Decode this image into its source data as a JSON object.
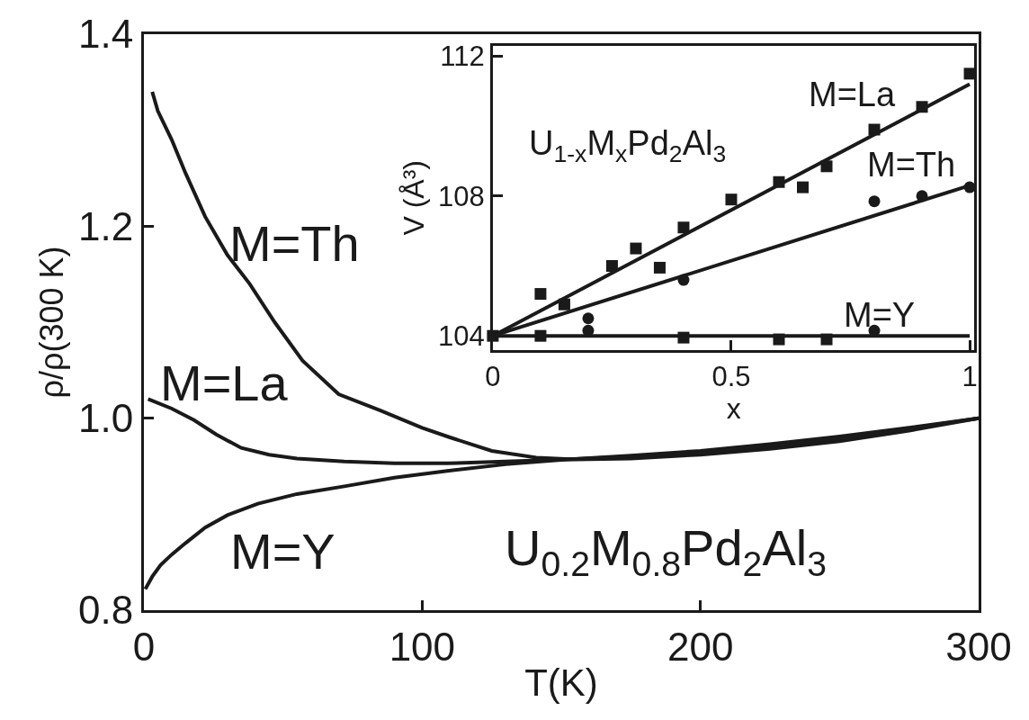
{
  "chart_data": [
    {
      "type": "line",
      "xlabel": "T(K)",
      "ylabel": "ρ/ρ(300 K)",
      "xlim": [
        0,
        300
      ],
      "ylim": [
        0.8,
        1.4
      ],
      "xticks": [
        0,
        100,
        200,
        300
      ],
      "yticks": [
        0.8,
        {
          "value": 1.0,
          "label": "1.0"
        },
        1.2,
        1.4
      ],
      "series": [
        {
          "color": "#1a1a1a",
          "x": [
            3,
            5,
            10,
            15,
            22,
            30,
            38,
            47,
            57,
            70,
            85,
            100,
            110,
            125,
            141,
            155,
            175,
            200,
            225,
            250,
            275,
            300
          ],
          "values": [
            1.34,
            1.32,
            1.29,
            1.255,
            1.21,
            1.17,
            1.14,
            1.1,
            1.06,
            1.025,
            1.008,
            0.99,
            0.98,
            0.966,
            0.959,
            0.957,
            0.958,
            0.962,
            0.968,
            0.976,
            0.987,
            1.0
          ]
        },
        {
          "color": "#1a1a1a",
          "x": [
            1.5,
            10,
            18,
            26,
            35,
            45,
            55,
            72,
            90,
            109,
            130,
            152,
            175,
            200,
            225,
            250,
            275,
            300
          ],
          "values": [
            1.02,
            1.01,
            0.998,
            0.983,
            0.969,
            0.962,
            0.958,
            0.955,
            0.953,
            0.953,
            0.955,
            0.957,
            0.961,
            0.966,
            0.973,
            0.981,
            0.99,
            1.0
          ]
        },
        {
          "color": "#1a1a1a",
          "x": [
            0.5,
            3,
            6,
            10,
            15,
            22,
            30,
            41,
            55,
            72,
            90,
            109,
            130,
            152,
            175,
            200,
            225,
            250,
            275,
            300
          ],
          "values": [
            0.822,
            0.835,
            0.847,
            0.858,
            0.87,
            0.886,
            0.899,
            0.911,
            0.921,
            0.929,
            0.938,
            0.945,
            0.952,
            0.957,
            0.96,
            0.964,
            0.971,
            0.979,
            0.989,
            1.0
          ]
        }
      ],
      "annotations": [
        "M=Th",
        "M=La",
        "M=Y",
        "U$_{0.2}$M$_{0.8}$Pd$_{2}$Al$_{3}$"
      ]
    },
    {
      "type": "scatter",
      "xlabel": "x",
      "ylabel": "V (Å³)",
      "xlim": [
        0,
        1.01
      ],
      "ylim": [
        103.6,
        112.3
      ],
      "xticks": [
        0,
        0.5,
        1
      ],
      "yticks": [
        104,
        108,
        112
      ],
      "series": [
        {
          "color": "#1a1a1a",
          "marker": "square",
          "x": [
            0,
            0.1,
            0.15,
            0.25,
            0.3,
            0.35,
            0.4,
            0.5,
            0.6,
            0.65,
            0.7,
            0.8,
            0.9,
            1.0
          ],
          "values": [
            104.0,
            105.2,
            104.9,
            106.0,
            106.5,
            105.95,
            107.1,
            107.9,
            108.4,
            108.25,
            108.85,
            109.9,
            110.55,
            111.5
          ]
        },
        {
          "type": "line",
          "color": "#1a1a1a",
          "x": [
            0,
            1
          ],
          "values": [
            104.0,
            111.2
          ]
        },
        {
          "color": "#1a1a1a",
          "marker": "circle",
          "x": [
            0.2,
            0.4,
            0.8,
            0.9,
            1.0
          ],
          "values": [
            104.5,
            105.6,
            107.85,
            108.0,
            108.25
          ]
        },
        {
          "type": "line",
          "color": "#1a1a1a",
          "x": [
            0,
            1
          ],
          "values": [
            104.0,
            108.3
          ]
        },
        {
          "color": "#1a1a1a",
          "marker": "square",
          "x": [
            0.1,
            0.4,
            0.6,
            0.7
          ],
          "values": [
            104.0,
            103.95,
            103.9,
            103.9
          ]
        },
        {
          "color": "#1a1a1a",
          "marker": "circle",
          "x": [
            0.2,
            0.8
          ],
          "values": [
            104.15,
            104.15
          ]
        },
        {
          "type": "line",
          "color": "#1a1a1a",
          "x": [
            0,
            1
          ],
          "values": [
            104.0,
            104.0
          ]
        }
      ],
      "annotations": [
        "M=La",
        "M=Th",
        "M=Y",
        "U$_{1-x}$M$_{x}$Pd$_{2}$Al$_{3}$"
      ]
    }
  ]
}
